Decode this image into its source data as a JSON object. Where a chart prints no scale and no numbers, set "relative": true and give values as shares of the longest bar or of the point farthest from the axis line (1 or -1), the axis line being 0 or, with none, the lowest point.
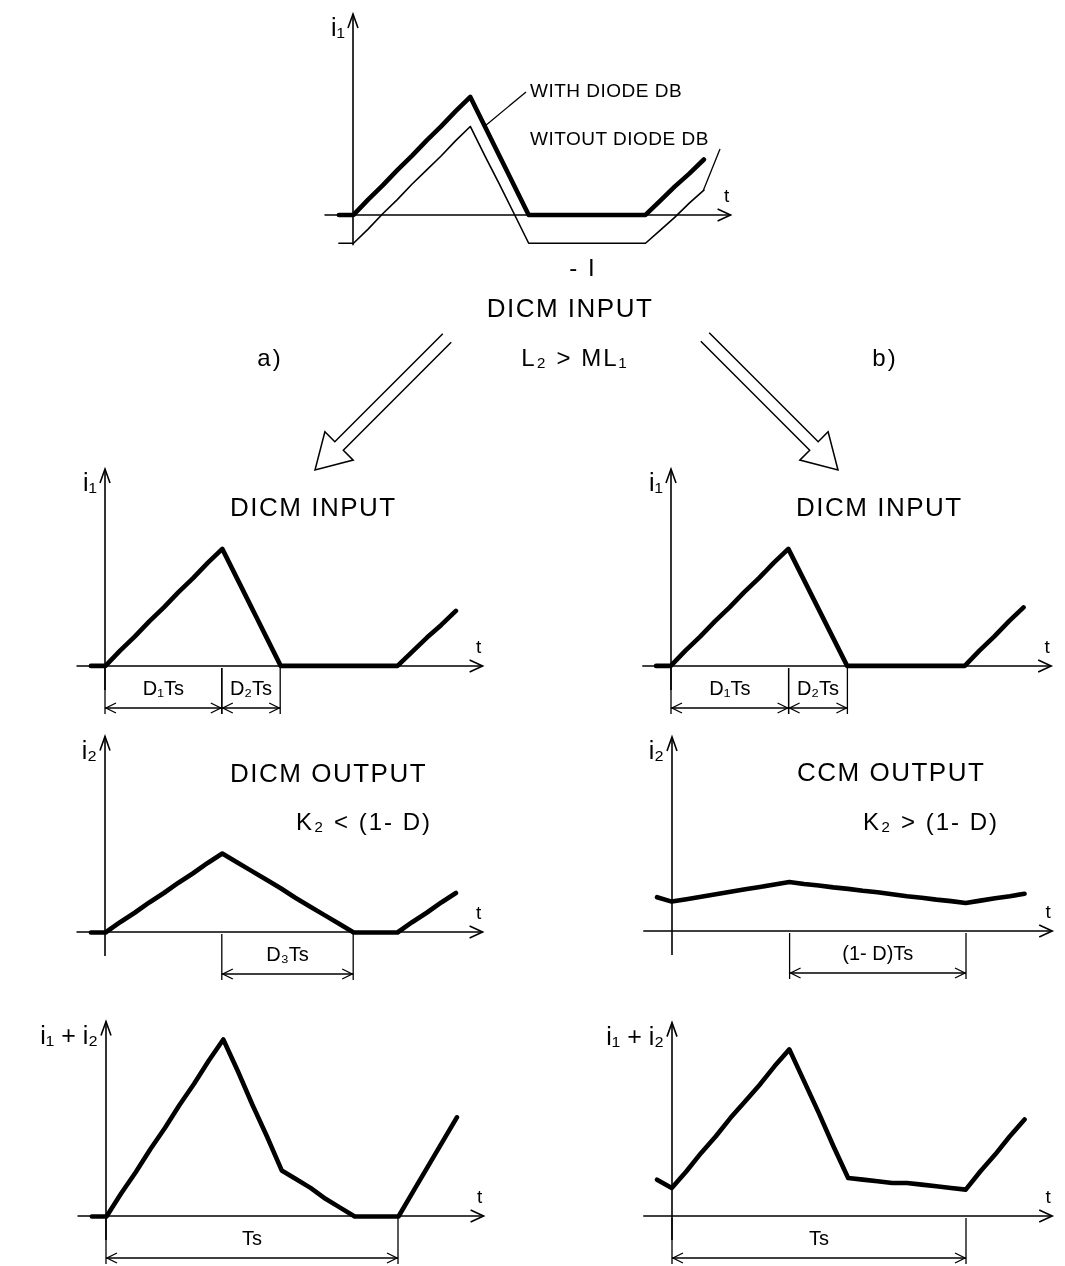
{
  "chart_data": [
    {
      "type": "line",
      "relative": true,
      "title": "DICM INPUT",
      "xlabel": "t",
      "ylabel": "i₁",
      "categories": [
        null,
        null,
        null,
        null,
        null,
        null,
        null,
        null,
        null,
        null,
        null,
        null,
        null,
        null,
        null,
        null,
        null,
        null,
        null,
        null,
        null,
        null,
        null,
        null,
        null,
        null
      ],
      "series": [
        {
          "name": "WITH DIODE DB",
          "color": "#000000",
          "values": [
            0,
            0,
            0.13,
            0.25,
            0.38,
            0.5,
            0.63,
            0.75,
            0.88,
            1,
            0.75,
            0.5,
            0.25,
            0,
            0,
            0,
            0,
            0,
            0,
            0,
            0,
            0,
            0.12,
            0.24,
            0.35,
            0.47
          ]
        },
        {
          "name": "WITOUT DIODE DB",
          "color": "#000000",
          "values": [
            -0.24,
            -0.24,
            -0.12,
            0.01,
            0.13,
            0.26,
            0.38,
            0.5,
            0.63,
            0.75,
            0.5,
            0.26,
            0.01,
            -0.24,
            -0.24,
            -0.24,
            -0.24,
            -0.24,
            -0.24,
            -0.24,
            -0.24,
            -0.24,
            -0.13,
            -0.02,
            0.1,
            0.21
          ]
        }
      ],
      "annotations": [
        {
          "text": "- I",
          "y": -0.24
        },
        "a)",
        "L₂ > ML₁",
        "b)"
      ]
    },
    {
      "type": "line",
      "relative": true,
      "title": "DICM INPUT",
      "xlabel": "t",
      "ylabel": "i₁",
      "color": "#000000",
      "categories": [
        null,
        null,
        null,
        null,
        null,
        null,
        null,
        null,
        null,
        null,
        null,
        null,
        null,
        null,
        null,
        null,
        null,
        null,
        null,
        null,
        null,
        null,
        null,
        null,
        null,
        null
      ],
      "values": [
        0,
        0,
        0.13,
        0.25,
        0.38,
        0.5,
        0.63,
        0.75,
        0.88,
        1,
        0.75,
        0.5,
        0.25,
        0,
        0,
        0,
        0,
        0,
        0,
        0,
        0,
        0,
        0.12,
        0.24,
        0.35,
        0.47
      ],
      "annotations": [
        "D₁Ts",
        "D₂Ts"
      ]
    },
    {
      "type": "line",
      "relative": true,
      "title": "DICM INPUT",
      "xlabel": "t",
      "ylabel": "i₁",
      "color": "#000000",
      "categories": [
        null,
        null,
        null,
        null,
        null,
        null,
        null,
        null,
        null,
        null,
        null,
        null,
        null,
        null,
        null,
        null,
        null,
        null,
        null,
        null,
        null,
        null,
        null,
        null,
        null,
        null
      ],
      "values": [
        0,
        0,
        0.13,
        0.25,
        0.38,
        0.5,
        0.63,
        0.75,
        0.88,
        1,
        0.75,
        0.5,
        0.25,
        0,
        0,
        0,
        0,
        0,
        0,
        0,
        0,
        0,
        0.13,
        0.25,
        0.38,
        0.5
      ],
      "annotations": [
        "D₁Ts",
        "D₂Ts"
      ]
    },
    {
      "type": "line",
      "relative": true,
      "title": "DICM OUTPUT",
      "xlabel": "t",
      "ylabel": "i₂",
      "color": "#000000",
      "categories": [
        null,
        null,
        null,
        null,
        null,
        null,
        null,
        null,
        null,
        null,
        null,
        null,
        null,
        null,
        null,
        null,
        null,
        null,
        null,
        null,
        null,
        null,
        null,
        null,
        null,
        null
      ],
      "values": [
        0,
        0,
        0.13,
        0.25,
        0.38,
        0.5,
        0.63,
        0.75,
        0.88,
        1,
        0.89,
        0.78,
        0.67,
        0.56,
        0.44,
        0.33,
        0.22,
        0.11,
        0,
        0,
        0,
        0,
        0.13,
        0.25,
        0.38,
        0.5
      ],
      "annotations": [
        "K₂ < (1- D)",
        "D₃Ts"
      ]
    },
    {
      "type": "line",
      "relative": true,
      "title": "CCM OUTPUT",
      "xlabel": "t",
      "ylabel": "i₂",
      "color": "#000000",
      "categories": [
        null,
        null,
        null,
        null,
        null,
        null,
        null,
        null,
        null,
        null,
        null,
        null,
        null,
        null,
        null,
        null,
        null,
        null,
        null,
        null,
        null,
        null,
        null,
        null,
        null,
        null
      ],
      "values": [
        0.69,
        0.6,
        0.65,
        0.7,
        0.75,
        0.8,
        0.85,
        0.9,
        0.95,
        1,
        0.96,
        0.93,
        0.89,
        0.86,
        0.82,
        0.79,
        0.75,
        0.71,
        0.68,
        0.64,
        0.61,
        0.57,
        0.62,
        0.67,
        0.71,
        0.76
      ],
      "annotations": [
        "K₂ > (1- D)",
        "(1- D)Ts"
      ]
    },
    {
      "type": "line",
      "relative": true,
      "xlabel": "t",
      "ylabel": "i₁ + i₂",
      "color": "#000000",
      "categories": [
        null,
        null,
        null,
        null,
        null,
        null,
        null,
        null,
        null,
        null,
        null,
        null,
        null,
        null,
        null,
        null,
        null,
        null,
        null,
        null,
        null,
        null,
        null,
        null,
        null,
        null
      ],
      "values": [
        0,
        0,
        0.13,
        0.25,
        0.38,
        0.5,
        0.63,
        0.75,
        0.88,
        1,
        0.82,
        0.63,
        0.45,
        0.26,
        0.21,
        0.16,
        0.1,
        0.05,
        0,
        0,
        0,
        0,
        0.14,
        0.28,
        0.42,
        0.56
      ],
      "annotations": [
        "Ts"
      ]
    },
    {
      "type": "line",
      "relative": true,
      "xlabel": "t",
      "ylabel": "i₁ + i₂",
      "color": "#000000",
      "categories": [
        null,
        null,
        null,
        null,
        null,
        null,
        null,
        null,
        null,
        null,
        null,
        null,
        null,
        null,
        null,
        null,
        null,
        null,
        null,
        null,
        null,
        null,
        null,
        null,
        null,
        null
      ],
      "values": [
        0.22,
        0.17,
        0.27,
        0.38,
        0.48,
        0.59,
        0.69,
        0.79,
        0.9,
        1,
        0.81,
        0.62,
        0.42,
        0.23,
        0.22,
        0.21,
        0.2,
        0.2,
        0.19,
        0.18,
        0.17,
        0.16,
        0.27,
        0.37,
        0.48,
        0.58
      ],
      "annotations": [
        "Ts"
      ]
    }
  ]
}
